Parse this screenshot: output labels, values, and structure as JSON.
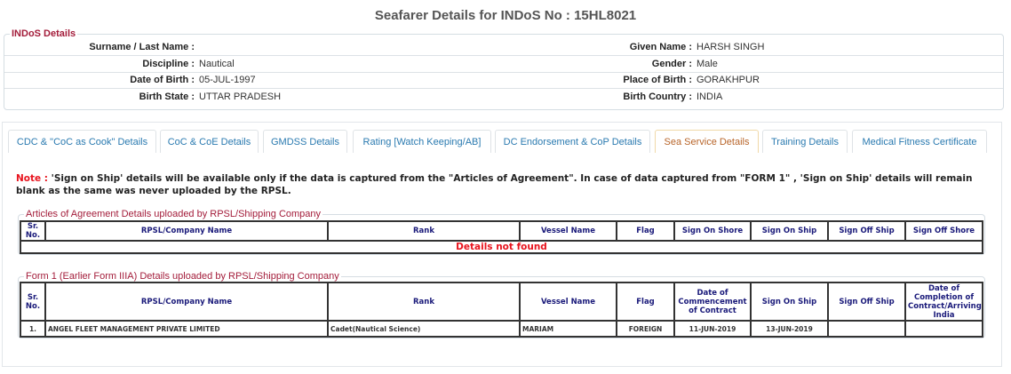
{
  "title": "Seafarer Details for INDoS No : 15HL8021",
  "indos": {
    "legend": "INDoS Details",
    "left": [
      {
        "label": "Surname / Last Name :",
        "value": ""
      },
      {
        "label": "Discipline :",
        "value": "Nautical"
      },
      {
        "label": "Date of Birth :",
        "value": "05-JUL-1997"
      },
      {
        "label": "Birth State :",
        "value": "UTTAR PRADESH"
      }
    ],
    "right": [
      {
        "label": "Given Name :",
        "value": "HARSH SINGH"
      },
      {
        "label": "Gender :",
        "value": "Male"
      },
      {
        "label": "Place of Birth :",
        "value": "GORAKHPUR"
      },
      {
        "label": "Birth Country :",
        "value": "INDIA"
      }
    ]
  },
  "tabs": [
    {
      "label": "CDC & \"CoC as Cook\" Details"
    },
    {
      "label": "CoC & CoE Details"
    },
    {
      "label": "GMDSS Details"
    },
    {
      "label": "Rating [Watch Keeping/AB]"
    },
    {
      "label": "DC Endorsement & CoP Details"
    },
    {
      "label": "Sea Service Details",
      "active": true
    },
    {
      "label": "Training Details"
    },
    {
      "label": "Medical Fitness Certificate"
    }
  ],
  "note": {
    "prefix": "Note :",
    "text": "'Sign on Ship' details will be available only if the data is captured from the \"Articles of Agreement\". In case of data captured from \"FORM 1\" , 'Sign on Ship' details will remain blank as the same was never uploaded by the RPSL."
  },
  "articles": {
    "legend": "Articles of Agreement Details uploaded by RPSL/Shipping Company",
    "headers": [
      "Sr. No.",
      "RPSL/Company Name",
      "Rank",
      "Vessel Name",
      "Flag",
      "Sign On Shore",
      "Sign On Ship",
      "Sign Off Ship",
      "Sign Off Shore"
    ],
    "empty": "Details not found"
  },
  "form1": {
    "legend": "Form 1 (Earlier Form IIIA) Details uploaded by RPSL/Shipping Company",
    "headers": [
      "Sr. No.",
      "RPSL/Company Name",
      "Rank",
      "Vessel Name",
      "Flag",
      "Date of Commencement of Contract",
      "Sign On Ship",
      "Sign Off Ship",
      "Date of Completion of Contract/Arriving India"
    ],
    "rows": [
      [
        "1.",
        "ANGEL FLEET MANAGEMENT PRIVATE LIMITED",
        "Cadet(Nautical Science)",
        "MARIAM",
        "FOREIGN",
        "11-JUN-2019",
        "13-JUN-2019",
        "",
        ""
      ]
    ]
  },
  "colors": {
    "legend": "#a31c3a",
    "tab": "#2a7ab0",
    "active_tab": "#b8652a",
    "note": "#e8141e",
    "header": "#1a1a7a"
  }
}
